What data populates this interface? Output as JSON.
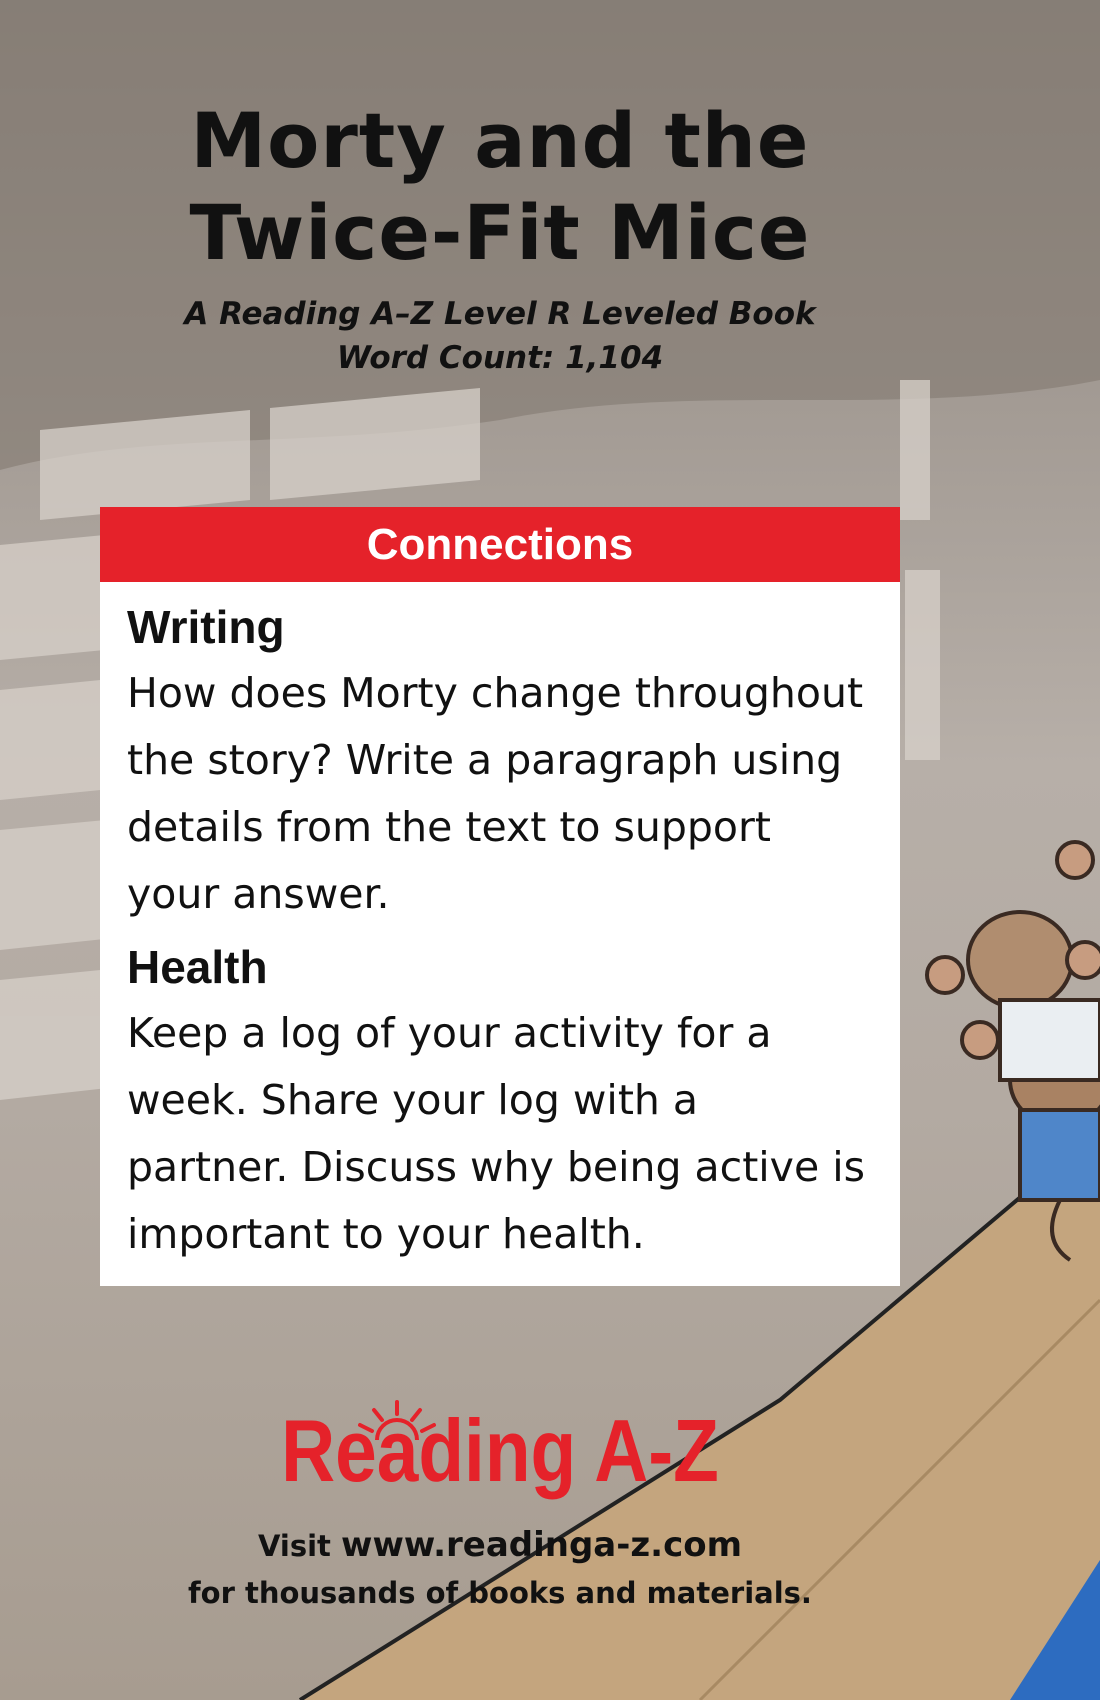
{
  "cover": {
    "title_line1": "Morty and the",
    "title_line2": "Twice-Fit Mice",
    "subtitle": "A Reading A–Z Level R Leveled Book",
    "word_count": "Word Count: 1,104"
  },
  "connections": {
    "header": "Connections",
    "sections": [
      {
        "heading": "Writing",
        "text": "How does Morty change throughout the story? Write a paragraph using details from the text to support your answer."
      },
      {
        "heading": "Health",
        "text": "Keep a log of your activity for a week. Share your log with a partner. Discuss why being active is important to your health."
      }
    ]
  },
  "brand": {
    "logo_text": "Reading A-Z",
    "accent_color": "#e5222a"
  },
  "footer": {
    "visit": "Visit",
    "url": "www.readinga-z.com",
    "tagline": "for thousands of books and materials."
  }
}
